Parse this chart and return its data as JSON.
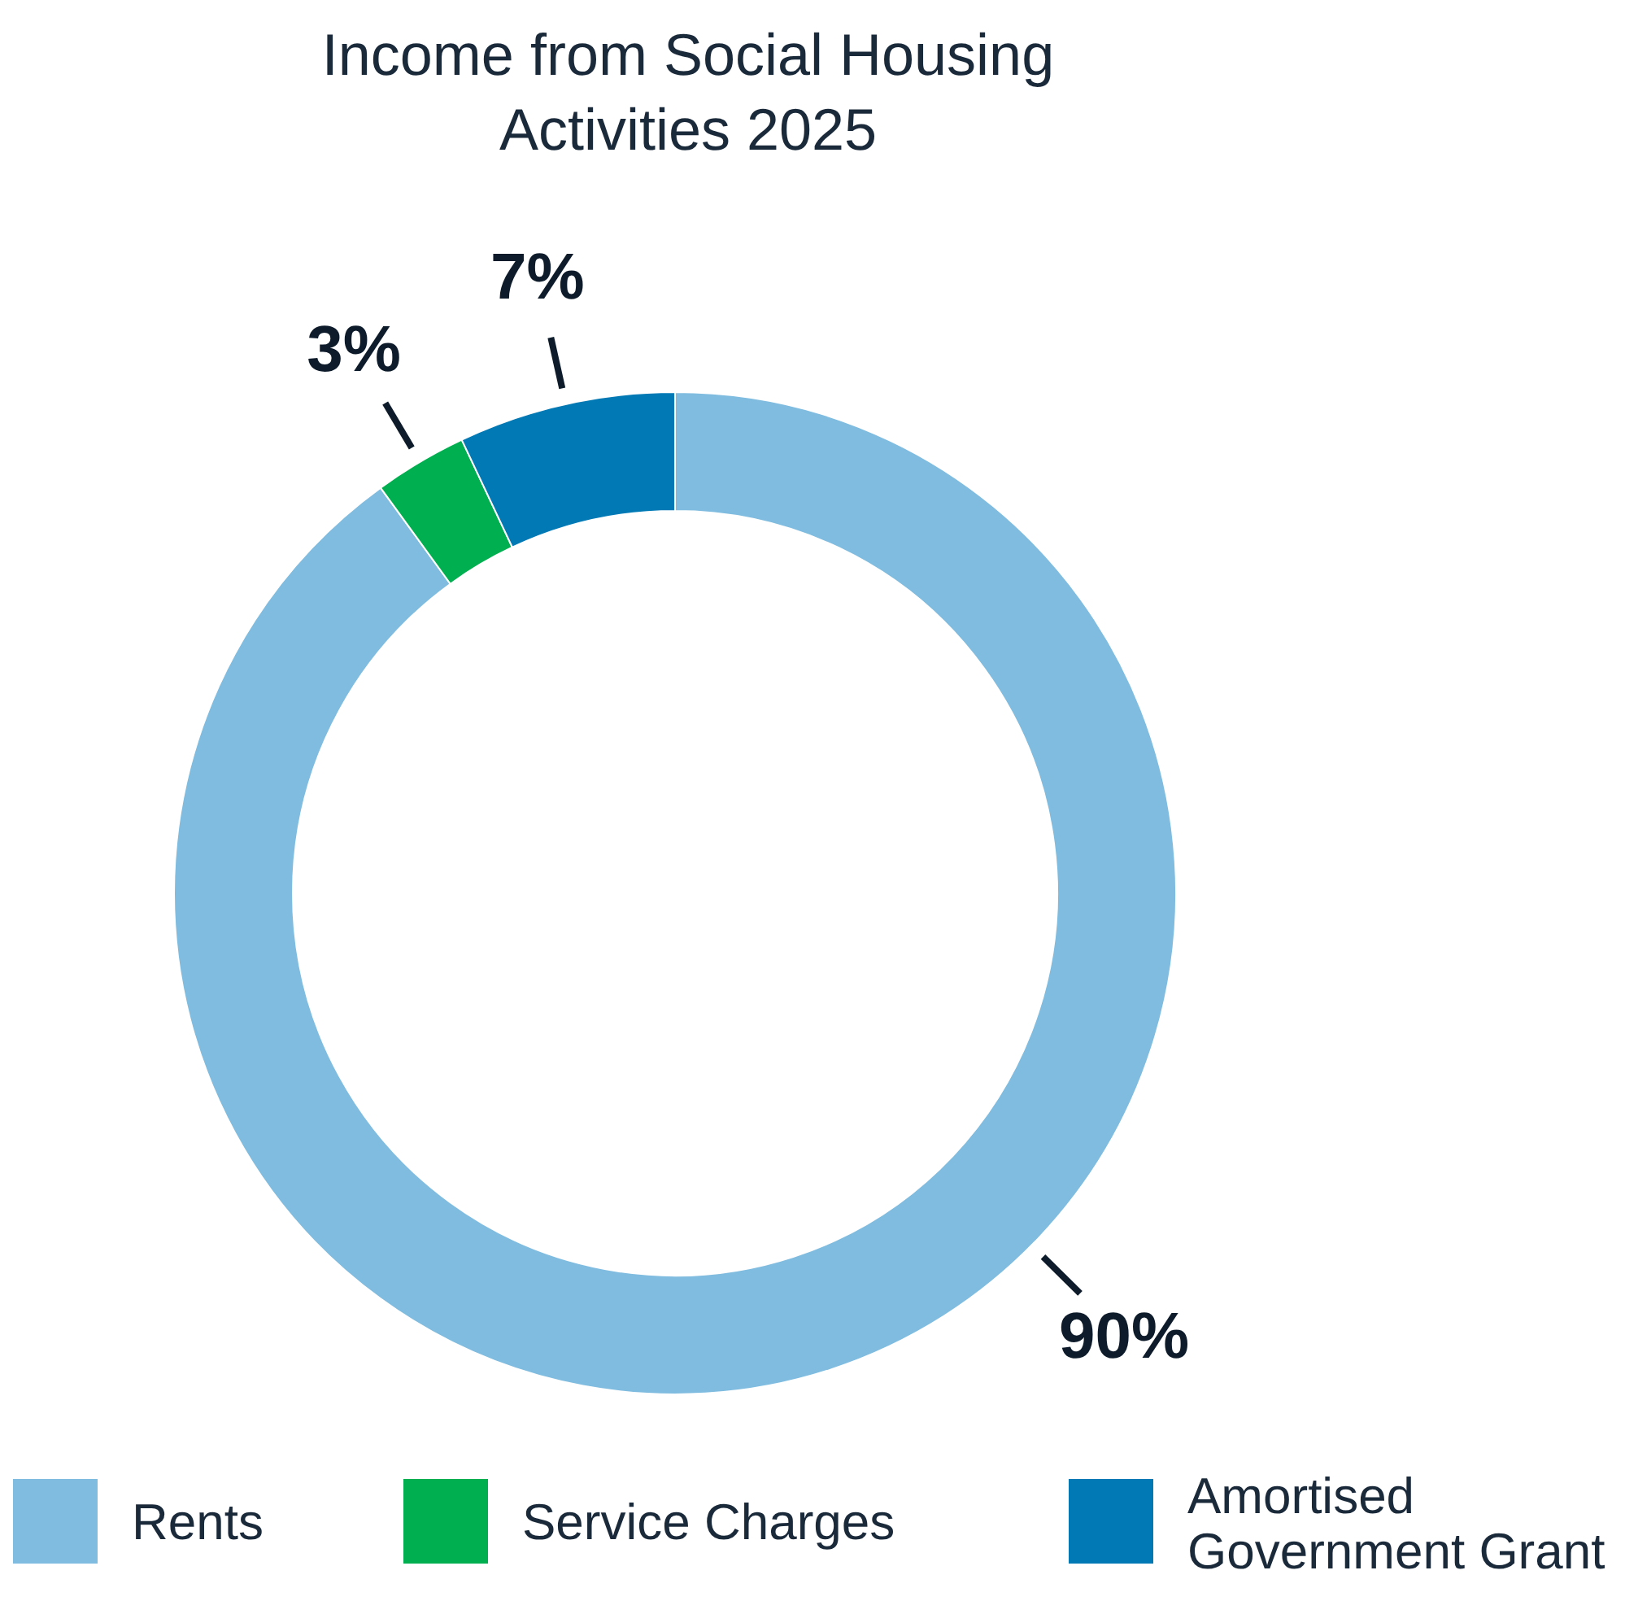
{
  "chart_data": {
    "type": "donut",
    "title": "Income from Social Housing Activities 2025",
    "categories": [
      "Rents",
      "Service Charges",
      "Amortised Government Grant"
    ],
    "values": [
      90,
      3,
      7
    ],
    "colors": [
      "#7fbcdf",
      "#00b050",
      "#0079b5"
    ],
    "value_labels": [
      "90%",
      "3%",
      "7%"
    ],
    "legend": "bottom"
  }
}
